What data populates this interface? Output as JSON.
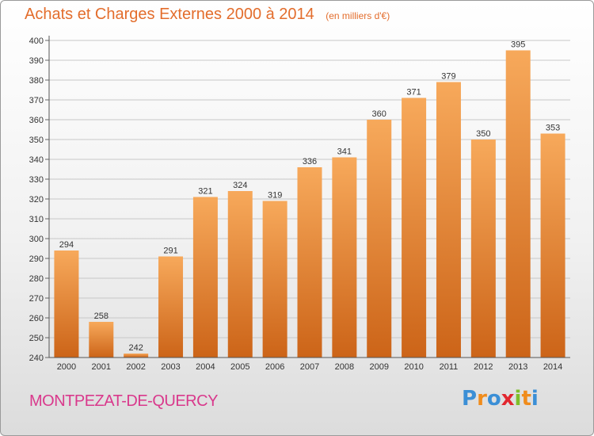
{
  "header": {
    "title": "Achats et Charges Externes 2000 à 2014",
    "unit": "(en milliers d'€)"
  },
  "footer": {
    "city": "MONTPEZAT-DE-QUERCY"
  },
  "logo": {
    "text": "Proxiti",
    "letter_colors": [
      "#3b8fd6",
      "#f08c1c",
      "#3b8fd6",
      "#e2272f",
      "#7fbf2a",
      "#f08c1c",
      "#3b8fd6"
    ]
  },
  "colors": {
    "title": "#e36d2c",
    "city": "#d9398c",
    "bar_top": "#f7a95b",
    "bar_bottom": "#cc6418",
    "grid": "#c8c8c8",
    "axis_text": "#333333"
  },
  "chart_data": {
    "type": "bar",
    "categories": [
      "2000",
      "2001",
      "2002",
      "2003",
      "2004",
      "2005",
      "2006",
      "2007",
      "2008",
      "2009",
      "2010",
      "2011",
      "2012",
      "2013",
      "2014"
    ],
    "values": [
      294,
      258,
      242,
      291,
      321,
      324,
      319,
      336,
      341,
      360,
      371,
      379,
      350,
      395,
      353
    ],
    "ylim": [
      240,
      400
    ],
    "yticks": [
      240,
      250,
      260,
      270,
      280,
      290,
      300,
      310,
      320,
      330,
      340,
      350,
      360,
      370,
      380,
      390,
      400
    ],
    "grid": true,
    "legend": "none"
  }
}
